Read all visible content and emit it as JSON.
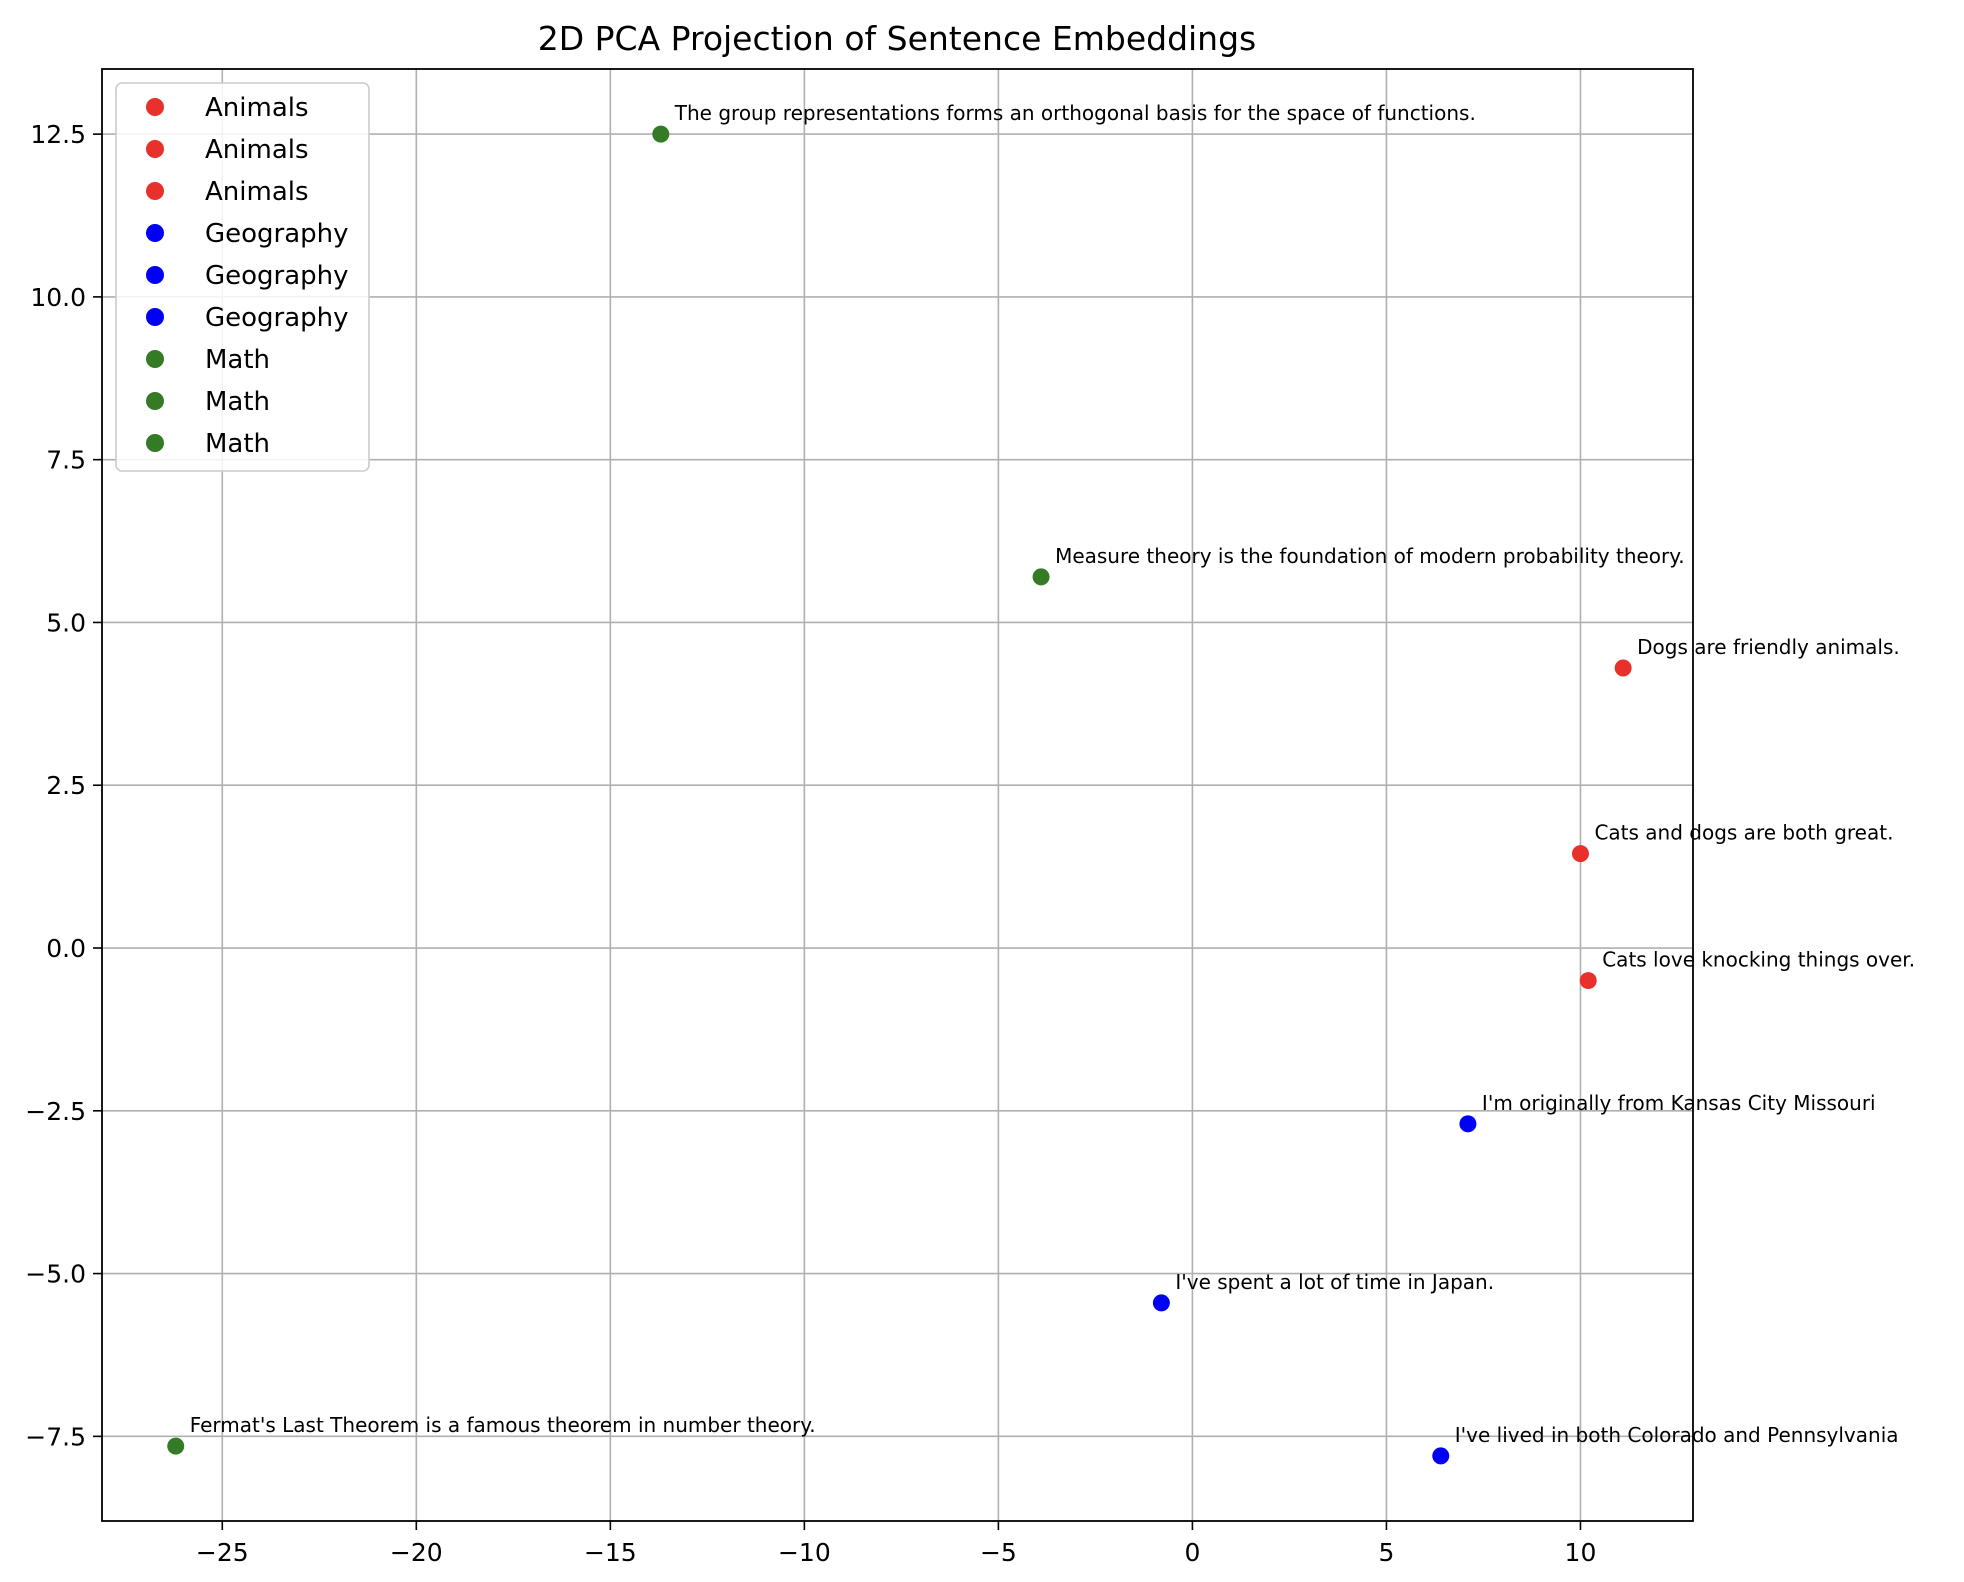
{
  "chart_data": {
    "type": "scatter",
    "title": "2D PCA Projection of Sentence Embeddings",
    "xlabel": "",
    "ylabel": "",
    "xlim": [
      -28.1,
      12.9
    ],
    "ylim": [
      -8.8,
      13.5
    ],
    "x_ticks": [
      -25,
      -20,
      -15,
      -10,
      -5,
      0,
      5,
      10
    ],
    "x_tick_labels": [
      "−25",
      "−20",
      "−15",
      "−10",
      "−5",
      "0",
      "5",
      "10"
    ],
    "y_ticks": [
      -7.5,
      -5.0,
      -2.5,
      0.0,
      2.5,
      5.0,
      7.5,
      10.0,
      12.5
    ],
    "y_tick_labels": [
      "−7.5",
      "−5.0",
      "−2.5",
      "0.0",
      "2.5",
      "5.0",
      "7.5",
      "10.0",
      "12.5"
    ],
    "grid": true,
    "legend_position": "top-left",
    "legend": [
      {
        "name": "Animals",
        "color": "#e8312a"
      },
      {
        "name": "Animals",
        "color": "#e8312a"
      },
      {
        "name": "Animals",
        "color": "#e8312a"
      },
      {
        "name": "Geography",
        "color": "#0000f5"
      },
      {
        "name": "Geography",
        "color": "#0000f5"
      },
      {
        "name": "Geography",
        "color": "#0000f5"
      },
      {
        "name": "Math",
        "color": "#357a25"
      },
      {
        "name": "Math",
        "color": "#357a25"
      },
      {
        "name": "Math",
        "color": "#357a25"
      }
    ],
    "points": [
      {
        "category": "Animals",
        "x": 11.1,
        "y": 4.3,
        "label": "Dogs are friendly animals.",
        "color": "#e8312a"
      },
      {
        "category": "Animals",
        "x": 10.0,
        "y": 1.45,
        "label": "Cats and dogs are both great.",
        "color": "#e8312a"
      },
      {
        "category": "Animals",
        "x": 10.2,
        "y": -0.5,
        "label": "Cats love knocking things over.",
        "color": "#e8312a"
      },
      {
        "category": "Geography",
        "x": 7.1,
        "y": -2.7,
        "label": "I'm originally from Kansas City Missouri",
        "color": "#0000f5"
      },
      {
        "category": "Geography",
        "x": -0.8,
        "y": -5.45,
        "label": "I've spent a lot of time in Japan.",
        "color": "#0000f5"
      },
      {
        "category": "Geography",
        "x": 6.4,
        "y": -7.8,
        "label": "I've lived in both Colorado and Pennsylvania",
        "color": "#0000f5"
      },
      {
        "category": "Math",
        "x": -13.7,
        "y": 12.5,
        "label": "The group representations forms an orthogonal basis for the space of functions.",
        "color": "#357a25"
      },
      {
        "category": "Math",
        "x": -3.9,
        "y": 5.7,
        "label": "Measure theory is the foundation of modern probability theory.",
        "color": "#357a25"
      },
      {
        "category": "Math",
        "x": -26.2,
        "y": -7.65,
        "label": "Fermat's Last Theorem is a famous theorem in number theory.",
        "color": "#357a25"
      }
    ]
  }
}
